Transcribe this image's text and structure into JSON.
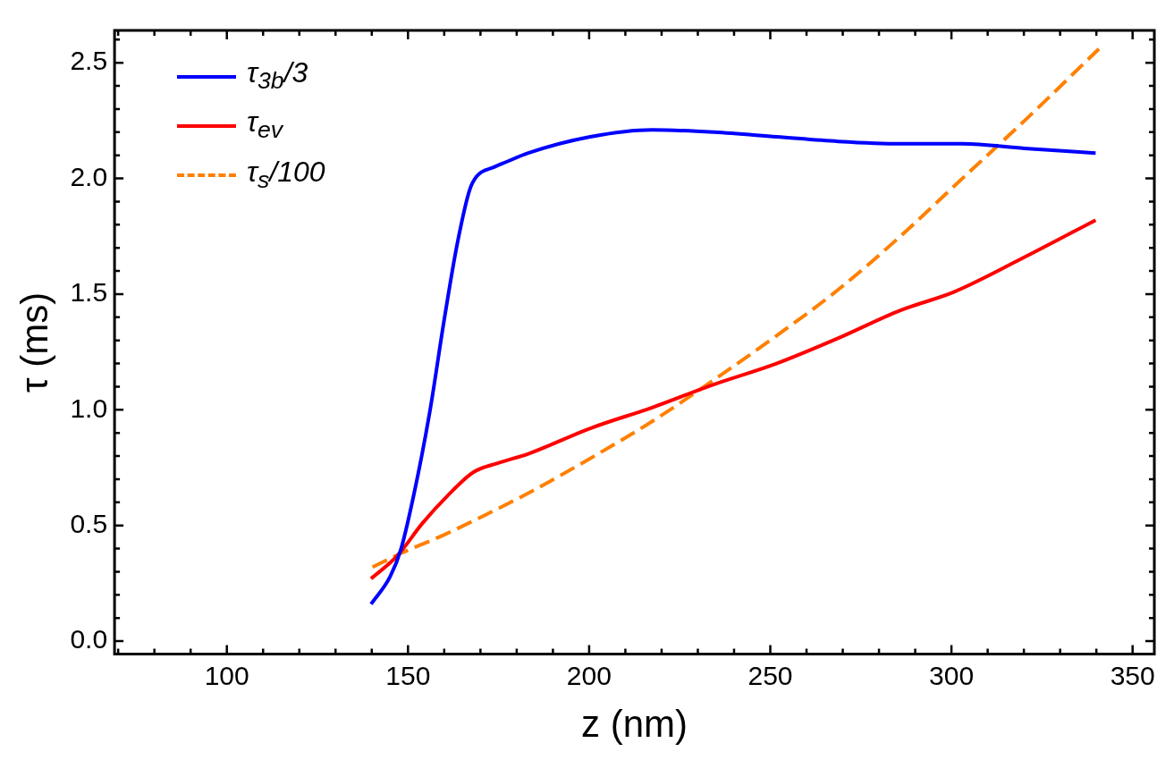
{
  "chart_data": {
    "type": "line",
    "xlabel": "z (nm)",
    "ylabel": "τ (ms)",
    "legend": "top left",
    "xlim": [
      69,
      356
    ],
    "ylim": [
      -0.056,
      2.64
    ],
    "xticks": [
      {
        "value": 70,
        "label": null
      },
      {
        "value": 80,
        "label": null
      },
      {
        "value": 90,
        "label": null
      },
      100,
      {
        "value": 110,
        "label": null
      },
      {
        "value": 120,
        "label": null
      },
      {
        "value": 130,
        "label": null
      },
      {
        "value": 140,
        "label": null
      },
      150,
      {
        "value": 160,
        "label": null
      },
      {
        "value": 170,
        "label": null
      },
      {
        "value": 180,
        "label": null
      },
      {
        "value": 190,
        "label": null
      },
      200,
      {
        "value": 210,
        "label": null
      },
      {
        "value": 220,
        "label": null
      },
      {
        "value": 230,
        "label": null
      },
      {
        "value": 240,
        "label": null
      },
      250,
      {
        "value": 260,
        "label": null
      },
      {
        "value": 270,
        "label": null
      },
      {
        "value": 280,
        "label": null
      },
      {
        "value": 290,
        "label": null
      },
      300,
      {
        "value": 310,
        "label": null
      },
      {
        "value": 320,
        "label": null
      },
      {
        "value": 330,
        "label": null
      },
      {
        "value": 340,
        "label": null
      },
      350
    ],
    "yticks": [
      {
        "value": 0,
        "label": "0.0"
      },
      {
        "value": 0.1,
        "label": null
      },
      {
        "value": 0.2,
        "label": null
      },
      {
        "value": 0.3,
        "label": null
      },
      {
        "value": 0.4,
        "label": null
      },
      0.5,
      {
        "value": 0.6,
        "label": null
      },
      {
        "value": 0.7,
        "label": null
      },
      {
        "value": 0.8,
        "label": null
      },
      {
        "value": 0.9,
        "label": null
      },
      {
        "value": 1,
        "label": "1.0"
      },
      {
        "value": 1.1,
        "label": null
      },
      {
        "value": 1.2,
        "label": null
      },
      {
        "value": 1.3,
        "label": null
      },
      {
        "value": 1.4,
        "label": null
      },
      1.5,
      {
        "value": 1.6,
        "label": null
      },
      {
        "value": 1.7,
        "label": null
      },
      {
        "value": 1.8,
        "label": null
      },
      {
        "value": 1.9,
        "label": null
      },
      {
        "value": 2,
        "label": "2.0"
      },
      {
        "value": 2.1,
        "label": null
      },
      {
        "value": 2.2,
        "label": null
      },
      {
        "value": 2.3,
        "label": null
      },
      {
        "value": 2.4,
        "label": null
      },
      2.5,
      {
        "value": 2.6,
        "label": null
      }
    ],
    "series": [
      {
        "name": "τ$_{3b}$/3",
        "color": "#0000ff",
        "line_style": "solid",
        "x": [
          139.8,
          145.1,
          148.1,
          152.1,
          156.0,
          160.0,
          163.5,
          167.0,
          169.0,
          173.9,
          176.9,
          183.2,
          200.3,
          217.4,
          234.5,
          251.7,
          268.8,
          285.9,
          303.0,
          320.2,
          339.8
        ],
        "values": [
          0.16,
          0.28,
          0.4,
          0.67,
          0.99,
          1.39,
          1.71,
          1.95,
          2.01,
          2.05,
          2.07,
          2.11,
          2.18,
          2.21,
          2.2,
          2.18,
          2.16,
          2.15,
          2.15,
          2.13,
          2.11
        ]
      },
      {
        "name": "τ$_{ev}$",
        "color": "#ff0000",
        "line_style": "solid",
        "x": [
          139.8,
          147.1,
          154.0,
          161.0,
          168.0,
          174.9,
          183.2,
          200.3,
          217.4,
          234.5,
          251.7,
          268.8,
          285.9,
          300.8,
          320.2,
          339.8
        ],
        "values": [
          0.27,
          0.37,
          0.51,
          0.63,
          0.73,
          0.77,
          0.81,
          0.92,
          1.01,
          1.11,
          1.2,
          1.31,
          1.43,
          1.51,
          1.66,
          1.82
        ]
      },
      {
        "name": "τ$_{s}$/100",
        "color": "#ff8000",
        "line_style": "dashed",
        "x": [
          140.2,
          148.1,
          160.0,
          171.9,
          183.2,
          200.3,
          217.4,
          234.5,
          251.7,
          268.8,
          285.9,
          303.0,
          320.2,
          340.7
        ],
        "values": [
          0.32,
          0.38,
          0.46,
          0.55,
          0.64,
          0.79,
          0.95,
          1.13,
          1.32,
          1.52,
          1.75,
          2.0,
          2.25,
          2.56
        ]
      }
    ]
  }
}
